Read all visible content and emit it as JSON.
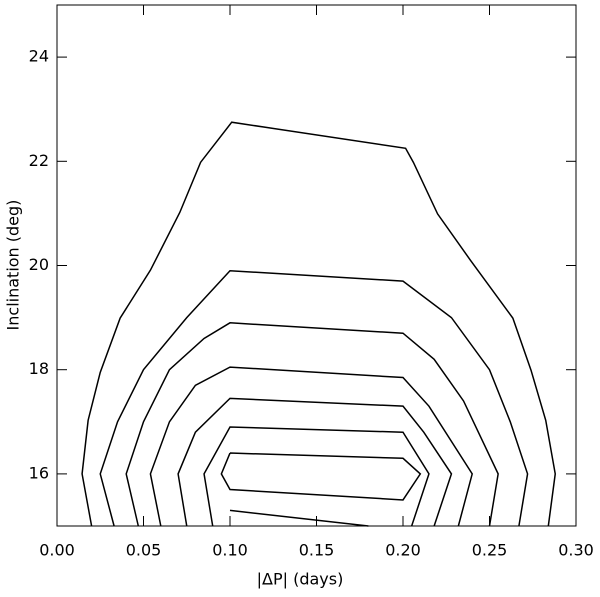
{
  "chart_data": {
    "type": "contour",
    "xlabel": "|ΔP| (days)",
    "ylabel": "Inclination (deg)",
    "xlim": [
      0,
      0.3
    ],
    "ylim": [
      15,
      25
    ],
    "xticks": [
      {
        "value": 0,
        "label": "0.00"
      },
      {
        "value": 0.05,
        "label": "0.05"
      },
      {
        "value": 0.1,
        "label": "0.10"
      },
      {
        "value": 0.15,
        "label": "0.15"
      },
      {
        "value": 0.2,
        "label": "0.20"
      },
      {
        "value": 0.25,
        "label": "0.25"
      },
      {
        "value": 0.3,
        "label": "0.30"
      }
    ],
    "yticks": [
      16,
      18,
      20,
      22,
      24
    ],
    "color": "#000000",
    "series": [
      {
        "x": [
          0.02,
          0.0145,
          0.018,
          0.025,
          0.0365,
          0.054,
          0.071,
          0.083,
          0.101,
          0.2015,
          0.206,
          0.22,
          0.239,
          0.2635,
          0.274,
          0.2825,
          0.288,
          0.284
        ],
        "values": [
          15,
          16,
          17.03,
          17.95,
          18.99,
          19.91,
          21.02,
          21.98,
          22.75,
          22.25,
          21.98,
          20.99,
          20.1,
          18.99,
          17.99,
          17.03,
          16,
          15
        ]
      },
      {
        "x": [
          0.033,
          0.025,
          0.035,
          0.05,
          0.075,
          0.1,
          0.2,
          0.228,
          0.25,
          0.262,
          0.272,
          0.267
        ],
        "values": [
          15,
          16,
          17,
          18,
          19,
          19.9,
          19.7,
          19,
          18,
          17,
          16,
          15
        ]
      },
      {
        "x": [
          0.047,
          0.04,
          0.05,
          0.065,
          0.085,
          0.1,
          0.2,
          0.218,
          0.235,
          0.255,
          0.25
        ],
        "values": [
          15,
          16,
          17,
          18,
          18.6,
          18.9,
          18.7,
          18.2,
          17.4,
          16,
          15
        ]
      },
      {
        "x": [
          0.06,
          0.054,
          0.065,
          0.08,
          0.1,
          0.2,
          0.215,
          0.24,
          0.232
        ],
        "values": [
          15,
          16,
          17,
          17.7,
          18.05,
          17.85,
          17.3,
          16,
          15
        ]
      },
      {
        "x": [
          0.075,
          0.07,
          0.08,
          0.1,
          0.2,
          0.212,
          0.228,
          0.218
        ],
        "values": [
          15,
          16,
          16.8,
          17.45,
          17.3,
          16.8,
          16,
          15
        ]
      },
      {
        "x": [
          0.09,
          0.085,
          0.1,
          0.2,
          0.215,
          0.205
        ],
        "values": [
          15,
          16,
          16.9,
          16.8,
          16,
          15
        ]
      },
      {
        "x": [
          0.1,
          0.2,
          0.21,
          0.2,
          0.1,
          0.095,
          0.1
        ],
        "values": [
          16.4,
          16.3,
          16,
          15.5,
          15.7,
          16,
          16.4
        ]
      },
      {
        "x": [
          0.1,
          0.18
        ],
        "values": [
          15.3,
          15
        ]
      }
    ]
  }
}
